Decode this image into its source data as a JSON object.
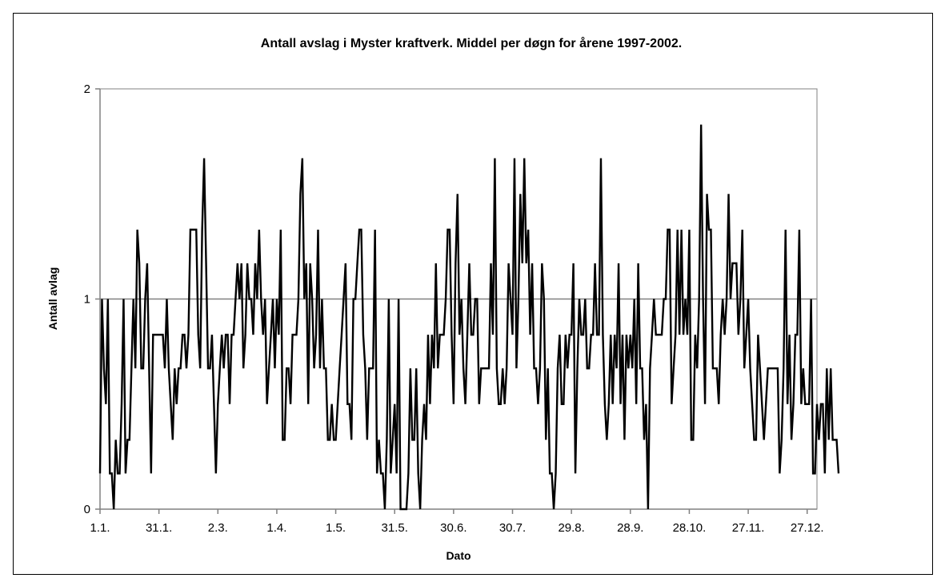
{
  "chart_data": {
    "type": "line",
    "title": "Antall avslag i Myster kraftverk. Middel per døgn for årene 1997-2002.",
    "xlabel": "Dato",
    "ylabel": "Antall avlag",
    "ylim": [
      0,
      2
    ],
    "yticks": [
      "0",
      "1",
      "2"
    ],
    "xlim": [
      1,
      366
    ],
    "xticks": [
      {
        "label": "1.1.",
        "day": 1
      },
      {
        "label": "31.1.",
        "day": 31
      },
      {
        "label": "2.3.",
        "day": 61
      },
      {
        "label": "1.4.",
        "day": 91
      },
      {
        "label": "1.5.",
        "day": 121
      },
      {
        "label": "31.5.",
        "day": 151
      },
      {
        "label": "30.6.",
        "day": 181
      },
      {
        "label": "30.7.",
        "day": 211
      },
      {
        "label": "29.8.",
        "day": 241
      },
      {
        "label": "28.9.",
        "day": 271
      },
      {
        "label": "28.10.",
        "day": 301
      },
      {
        "label": "27.11.",
        "day": 331
      },
      {
        "label": "27.12.",
        "day": 361
      }
    ],
    "grid": "horizontal",
    "legend": "none",
    "series": [
      {
        "color": "#000000",
        "values": [
          0.17,
          1,
          0.67,
          0.5,
          1,
          0.17,
          0.17,
          0,
          0.33,
          0.17,
          0.17,
          0.5,
          1,
          0.17,
          0.33,
          0.33,
          0.67,
          1,
          0.67,
          1.33,
          1.17,
          0.67,
          0.67,
          1,
          1.17,
          0.67,
          0.17,
          0.83,
          0.83,
          0.83,
          0.83,
          0.83,
          0.83,
          0.67,
          1,
          0.67,
          0.5,
          0.33,
          0.67,
          0.5,
          0.67,
          0.67,
          0.83,
          0.83,
          0.67,
          0.83,
          1.33,
          1.33,
          1.33,
          1.33,
          0.83,
          0.67,
          1.33,
          1.67,
          1.17,
          0.67,
          0.67,
          0.83,
          0.5,
          0.17,
          0.5,
          0.67,
          0.83,
          0.67,
          0.83,
          0.83,
          0.5,
          0.83,
          0.83,
          1,
          1.17,
          1,
          1.17,
          0.67,
          0.83,
          1.17,
          1,
          1,
          0.83,
          1.17,
          1,
          1.33,
          1,
          0.83,
          1,
          0.5,
          0.67,
          0.83,
          1,
          0.67,
          1,
          0.83,
          1.33,
          0.33,
          0.33,
          0.67,
          0.67,
          0.5,
          0.83,
          0.83,
          0.83,
          1,
          1.5,
          1.67,
          1,
          1.17,
          0.5,
          1.17,
          1,
          0.67,
          0.83,
          1.33,
          0.67,
          1,
          0.67,
          0.67,
          0.33,
          0.33,
          0.5,
          0.33,
          0.33,
          0.5,
          0.67,
          0.83,
          1,
          1.17,
          0.5,
          0.5,
          0.33,
          1,
          1,
          1.17,
          1.33,
          1.33,
          0.83,
          0.67,
          0.33,
          0.67,
          0.67,
          0.67,
          1.33,
          0.17,
          0.33,
          0.17,
          0.17,
          0,
          0.33,
          1,
          0.17,
          0.33,
          0.5,
          0.17,
          1,
          0,
          0,
          0,
          0,
          0.17,
          0.67,
          0.33,
          0.33,
          0.67,
          0.17,
          0,
          0.33,
          0.5,
          0.33,
          0.83,
          0.5,
          0.83,
          0.67,
          1.17,
          0.67,
          0.83,
          0.83,
          0.83,
          1,
          1.33,
          1.33,
          0.83,
          0.5,
          1.17,
          1.5,
          0.83,
          1,
          0.67,
          0.5,
          0.83,
          1.17,
          0.83,
          0.83,
          1,
          1,
          0.5,
          0.67,
          0.67,
          0.67,
          0.67,
          0.67,
          1.17,
          0.83,
          1.67,
          0.67,
          0.5,
          0.5,
          0.67,
          0.5,
          0.67,
          1.17,
          1,
          0.83,
          1.67,
          0.67,
          1,
          1.5,
          1.17,
          1.67,
          1.17,
          1.33,
          0.83,
          1.17,
          0.67,
          0.67,
          0.5,
          0.67,
          1.17,
          1,
          0.33,
          0.67,
          0.17,
          0.17,
          0,
          0.17,
          0.67,
          0.83,
          0.5,
          0.5,
          0.83,
          0.67,
          0.83,
          0.83,
          1.17,
          0.17,
          0.67,
          1,
          0.83,
          0.83,
          1,
          0.67,
          0.67,
          0.83,
          0.83,
          1.17,
          0.83,
          0.83,
          1.67,
          0.83,
          0.5,
          0.33,
          0.5,
          0.83,
          0.5,
          0.83,
          0.67,
          1.17,
          0.5,
          0.83,
          0.33,
          0.83,
          0.67,
          0.83,
          0.67,
          1,
          0.5,
          1.17,
          0.67,
          0.67,
          0.33,
          0.5,
          0,
          0.67,
          0.83,
          1,
          0.83,
          0.83,
          0.83,
          0.83,
          1,
          1,
          1.33,
          1.33,
          0.5,
          0.67,
          0.83,
          1.33,
          0.83,
          1.33,
          0.83,
          1,
          0.83,
          1.33,
          0.33,
          0.33,
          0.83,
          0.67,
          1,
          1.83,
          1,
          0.5,
          1.5,
          1.33,
          1.33,
          0.67,
          0.67,
          0.67,
          0.5,
          0.83,
          1,
          0.83,
          1,
          1.5,
          1,
          1.17,
          1.17,
          1.17,
          0.83,
          1,
          1.33,
          0.67,
          0.83,
          1,
          0.67,
          0.5,
          0.33,
          0.33,
          0.83,
          0.67,
          0.5,
          0.33,
          0.5,
          0.67,
          0.67,
          0.67,
          0.67,
          0.67,
          0.67,
          0.17,
          0.33,
          0.67,
          1.33,
          0.5,
          0.83,
          0.33,
          0.5,
          0.83,
          0.83,
          1.33,
          0.5,
          0.67,
          0.5,
          0.5,
          0.5,
          1,
          0.17,
          0.17,
          0.5,
          0.33,
          0.5,
          0.5,
          0.17,
          0.67,
          0.33,
          0.67,
          0.33,
          0.33,
          0.33,
          0.17
        ]
      }
    ]
  }
}
